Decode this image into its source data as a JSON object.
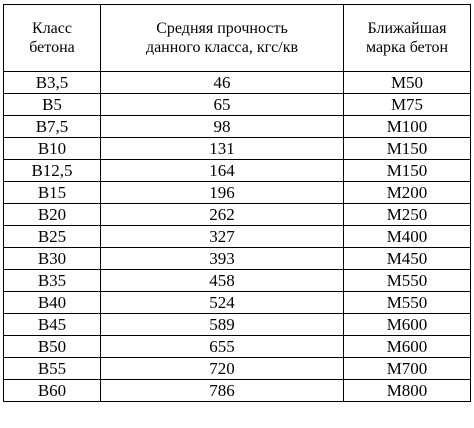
{
  "table": {
    "headers": [
      [
        "Класс",
        "бетона"
      ],
      [
        "Средняя прочность",
        "данного класса, кгс/кв"
      ],
      [
        "Ближайшая",
        "марка бетон"
      ]
    ],
    "rows": [
      [
        "В3,5",
        "46",
        "М50"
      ],
      [
        "В5",
        "65",
        "М75"
      ],
      [
        "В7,5",
        "98",
        "М100"
      ],
      [
        "В10",
        "131",
        "М150"
      ],
      [
        "В12,5",
        "164",
        "М150"
      ],
      [
        "В15",
        "196",
        "М200"
      ],
      [
        "В20",
        "262",
        "М250"
      ],
      [
        "В25",
        "327",
        "М400"
      ],
      [
        "В30",
        "393",
        "М450"
      ],
      [
        "В35",
        "458",
        "М550"
      ],
      [
        "В40",
        "524",
        "М550"
      ],
      [
        "В45",
        "589",
        "М600"
      ],
      [
        "В50",
        "655",
        "М600"
      ],
      [
        "В55",
        "720",
        "М700"
      ],
      [
        "В60",
        "786",
        "М800"
      ]
    ]
  }
}
